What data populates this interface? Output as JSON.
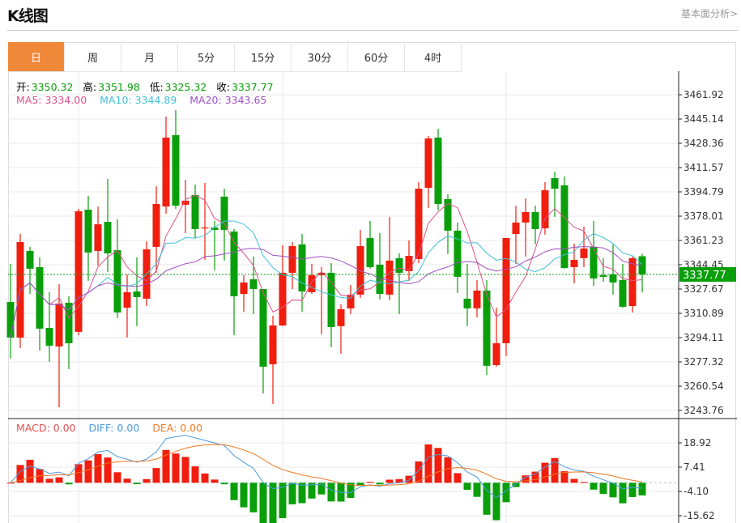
{
  "header": {
    "title": "K线图",
    "link": "基本面分析>"
  },
  "tabs": [
    {
      "label": "日",
      "active": true
    },
    {
      "label": "周"
    },
    {
      "label": "月"
    },
    {
      "label": "5分"
    },
    {
      "label": "15分"
    },
    {
      "label": "30分"
    },
    {
      "label": "60分"
    },
    {
      "label": "4时"
    }
  ],
  "ohlc_legend": {
    "open_label": "开:",
    "open": "3350.32",
    "high_label": "高:",
    "high": "3351.98",
    "low_label": "低:",
    "low": "3325.32",
    "close_label": "收:",
    "close": "3337.77"
  },
  "ma_legend": {
    "ma5": "MA5: 3334.00",
    "ma10": "MA10: 3344.89",
    "ma20": "MA20: 3343.65"
  },
  "macd_legend": {
    "macd": "MACD: 0.00",
    "diff": "DIFF: 0.00",
    "dea": "DEA: 0.00"
  },
  "colors": {
    "up": "#f01e0e",
    "down": "#0a9f0a",
    "ma5": "#e0508a",
    "ma10": "#40c0d8",
    "ma20": "#a050c0",
    "diff": "#4a9be0",
    "dea": "#f07820",
    "tab_active": "#f0883a",
    "ohlc_value": "#0a9f0a"
  },
  "price_axis": {
    "ticks": [
      "3461.92",
      "3445.14",
      "3428.36",
      "3411.57",
      "3394.79",
      "3378.01",
      "3361.23",
      "3344.45",
      "3327.67",
      "3310.89",
      "3294.11",
      "3277.32",
      "3260.54",
      "3243.76"
    ],
    "current": "3337.77"
  },
  "macd_axis": {
    "ticks": [
      "18.92",
      "7.41",
      "-4.10",
      "-15.62"
    ]
  },
  "chart_data": {
    "type": "candlestick",
    "ylim": [
      3243.76,
      3461.92
    ],
    "candles": [
      [
        3318.7,
        3345.0,
        3279.6,
        3294.1
      ],
      [
        3294.1,
        3365.7,
        3286.9,
        3360.1
      ],
      [
        3354.0,
        3356.8,
        3324.3,
        3341.7
      ],
      [
        3342.8,
        3349.5,
        3285.2,
        3300.3
      ],
      [
        3300.8,
        3325.5,
        3277.4,
        3288.5
      ],
      [
        3288.0,
        3331.1,
        3246.0,
        3317.6
      ],
      [
        3318.2,
        3322.7,
        3272.3,
        3290.2
      ],
      [
        3298.1,
        3383.1,
        3295.8,
        3381.4
      ],
      [
        3382.5,
        3392.0,
        3333.3,
        3352.9
      ],
      [
        3354.0,
        3384.7,
        3343.9,
        3372.4
      ],
      [
        3374.1,
        3403.8,
        3339.4,
        3352.3
      ],
      [
        3354.5,
        3375.8,
        3307.6,
        3311.5
      ],
      [
        3314.8,
        3337.8,
        3294.1,
        3325.5
      ],
      [
        3326.0,
        3349.5,
        3302.0,
        3322.1
      ],
      [
        3321.0,
        3360.7,
        3315.9,
        3355.1
      ],
      [
        3356.8,
        3398.7,
        3338.9,
        3386.4
      ],
      [
        3384.7,
        3446.8,
        3379.7,
        3432.3
      ],
      [
        3434.0,
        3451.3,
        3383.1,
        3385.3
      ],
      [
        3385.9,
        3403.2,
        3366.3,
        3388.7
      ],
      [
        3392.6,
        3399.8,
        3362.9,
        3369.1
      ],
      [
        3369.6,
        3401.0,
        3347.8,
        3370.2
      ],
      [
        3370.2,
        3374.7,
        3340.6,
        3368.5
      ],
      [
        3391.5,
        3397.0,
        3347.3,
        3368.5
      ],
      [
        3367.4,
        3369.1,
        3295.8,
        3322.7
      ],
      [
        3324.3,
        3337.2,
        3312.0,
        3332.2
      ],
      [
        3334.4,
        3350.1,
        3310.4,
        3327.7
      ],
      [
        3327.7,
        3327.7,
        3255.5,
        3274.0
      ],
      [
        3275.7,
        3309.2,
        3248.3,
        3302.5
      ],
      [
        3302.5,
        3357.9,
        3302.0,
        3338.9
      ],
      [
        3338.9,
        3360.1,
        3327.7,
        3357.3
      ],
      [
        3358.5,
        3365.7,
        3312.0,
        3326.0
      ],
      [
        3325.5,
        3345.0,
        3324.3,
        3337.2
      ],
      [
        3337.2,
        3342.8,
        3296.4,
        3338.9
      ],
      [
        3338.9,
        3345.6,
        3287.4,
        3301.4
      ],
      [
        3302.0,
        3317.1,
        3283.0,
        3313.7
      ],
      [
        3314.3,
        3330.5,
        3310.4,
        3323.8
      ],
      [
        3323.8,
        3368.5,
        3321.5,
        3357.3
      ],
      [
        3362.9,
        3374.7,
        3341.7,
        3342.8
      ],
      [
        3344.5,
        3366.3,
        3320.4,
        3324.3
      ],
      [
        3323.8,
        3377.5,
        3319.9,
        3347.3
      ],
      [
        3349.0,
        3352.3,
        3310.4,
        3338.9
      ],
      [
        3340.0,
        3361.3,
        3333.3,
        3350.6
      ],
      [
        3348.4,
        3401.5,
        3345.6,
        3397.0
      ],
      [
        3397.6,
        3433.4,
        3383.6,
        3431.7
      ],
      [
        3432.3,
        3438.4,
        3381.9,
        3386.4
      ],
      [
        3389.8,
        3393.1,
        3351.8,
        3368.0
      ],
      [
        3368.0,
        3373.6,
        3324.9,
        3336.1
      ],
      [
        3321.0,
        3345.0,
        3302.0,
        3314.3
      ],
      [
        3314.3,
        3333.9,
        3308.1,
        3326.6
      ],
      [
        3326.6,
        3333.9,
        3268.4,
        3274.6
      ],
      [
        3275.1,
        3314.8,
        3274.0,
        3290.2
      ],
      [
        3290.2,
        3362.9,
        3281.3,
        3362.9
      ],
      [
        3365.7,
        3385.3,
        3345.0,
        3373.6
      ],
      [
        3373.6,
        3390.3,
        3350.1,
        3380.8
      ],
      [
        3380.8,
        3385.3,
        3358.5,
        3369.1
      ],
      [
        3369.6,
        3401.5,
        3365.2,
        3395.9
      ],
      [
        3404.3,
        3408.8,
        3377.5,
        3397.0
      ],
      [
        3399.3,
        3405.4,
        3341.7,
        3342.2
      ],
      [
        3342.8,
        3359.0,
        3331.6,
        3347.8
      ],
      [
        3349.0,
        3370.8,
        3342.8,
        3355.7
      ],
      [
        3356.8,
        3374.7,
        3329.9,
        3335.0
      ],
      [
        3337.2,
        3349.0,
        3332.7,
        3336.1
      ],
      [
        3337.8,
        3358.5,
        3323.8,
        3332.2
      ],
      [
        3333.9,
        3345.0,
        3314.8,
        3315.4
      ],
      [
        3315.9,
        3350.1,
        3311.5,
        3349.0
      ],
      [
        3350.32,
        3351.98,
        3325.32,
        3337.77
      ]
    ],
    "macd_ylim": [
      -21.4,
      24.7
    ]
  }
}
